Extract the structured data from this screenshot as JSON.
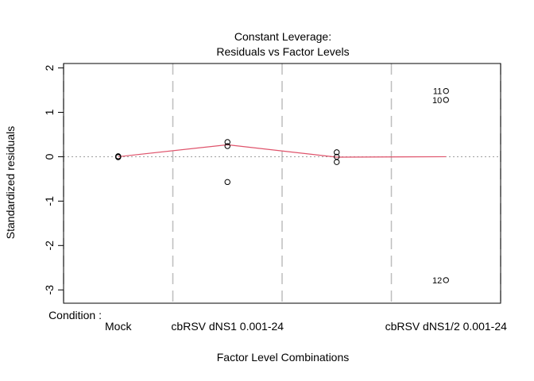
{
  "chart_data": {
    "type": "scatter",
    "title": "Constant Leverage:",
    "subtitle": "Residuals vs Factor Levels",
    "xlabel": "Factor Level Combinations",
    "ylabel": "Standardized residuals",
    "factor_label": "Condition :",
    "categories": [
      "Mock",
      "cbRSV dNS1 0.001-24",
      "",
      "cbRSV dNS1/2 0.001-24"
    ],
    "x_positions": [
      1,
      2,
      3,
      4
    ],
    "x_range": [
      0.5,
      4.5
    ],
    "category_dividers": [
      0.5,
      1.5,
      2.5,
      3.5,
      4.5
    ],
    "ylim": [
      -3.3,
      2.1
    ],
    "yticks": [
      -3,
      -2,
      -1,
      0,
      1,
      2
    ],
    "ytick_labels": [
      "-3",
      "-2",
      "-1",
      "0",
      "1",
      "2"
    ],
    "reference_line": 0,
    "points": [
      {
        "x": 1,
        "y": 0.0,
        "label": ""
      },
      {
        "x": 1,
        "y": 0.01,
        "label": ""
      },
      {
        "x": 1,
        "y": -0.01,
        "label": ""
      },
      {
        "x": 2,
        "y": 0.33,
        "label": ""
      },
      {
        "x": 2,
        "y": 0.24,
        "label": ""
      },
      {
        "x": 2,
        "y": -0.57,
        "label": ""
      },
      {
        "x": 3,
        "y": 0.1,
        "label": ""
      },
      {
        "x": 3,
        "y": 0.0,
        "label": ""
      },
      {
        "x": 3,
        "y": -0.12,
        "label": ""
      },
      {
        "x": 4,
        "y": 1.48,
        "label": "11"
      },
      {
        "x": 4,
        "y": 1.28,
        "label": "10"
      },
      {
        "x": 4,
        "y": -2.78,
        "label": "12"
      }
    ],
    "smooth_line": {
      "x": [
        1,
        2,
        3,
        4
      ],
      "y": [
        0.0,
        0.27,
        -0.01,
        0.0
      ]
    },
    "colors": {
      "smooth": "#DF536B",
      "reference": "#9E9E9E",
      "divider": "#BEBEBE"
    }
  }
}
